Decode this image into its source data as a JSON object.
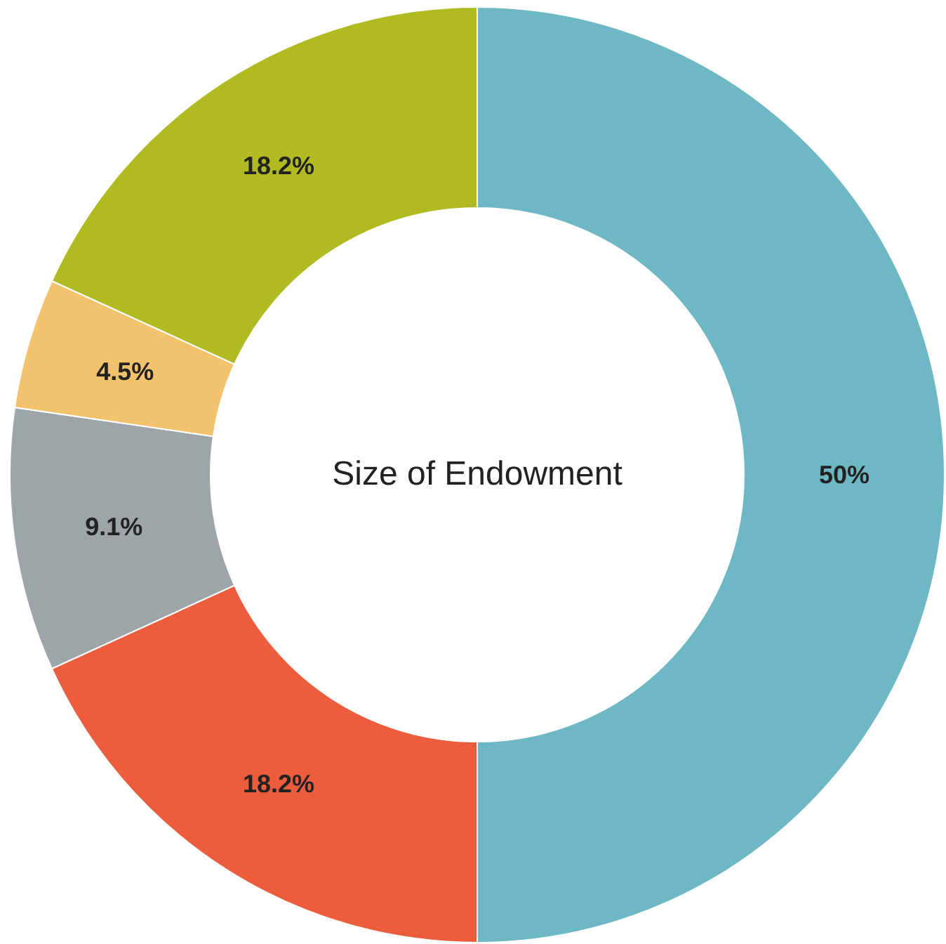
{
  "chart_data": {
    "type": "donut",
    "title": "Size of Endowment",
    "categories": [
      null,
      null,
      null,
      null,
      null
    ],
    "values": [
      50,
      18.2,
      9.1,
      4.5,
      18.2
    ],
    "colors": [
      "#6db8c4",
      "#ec5d3e",
      "#9ea5a8",
      "#f2c26c",
      "#b0bb22"
    ],
    "value_labels": [
      "50%",
      "18.2%",
      "9.1%",
      "4.5%",
      "18.2%"
    ],
    "legend": false
  }
}
